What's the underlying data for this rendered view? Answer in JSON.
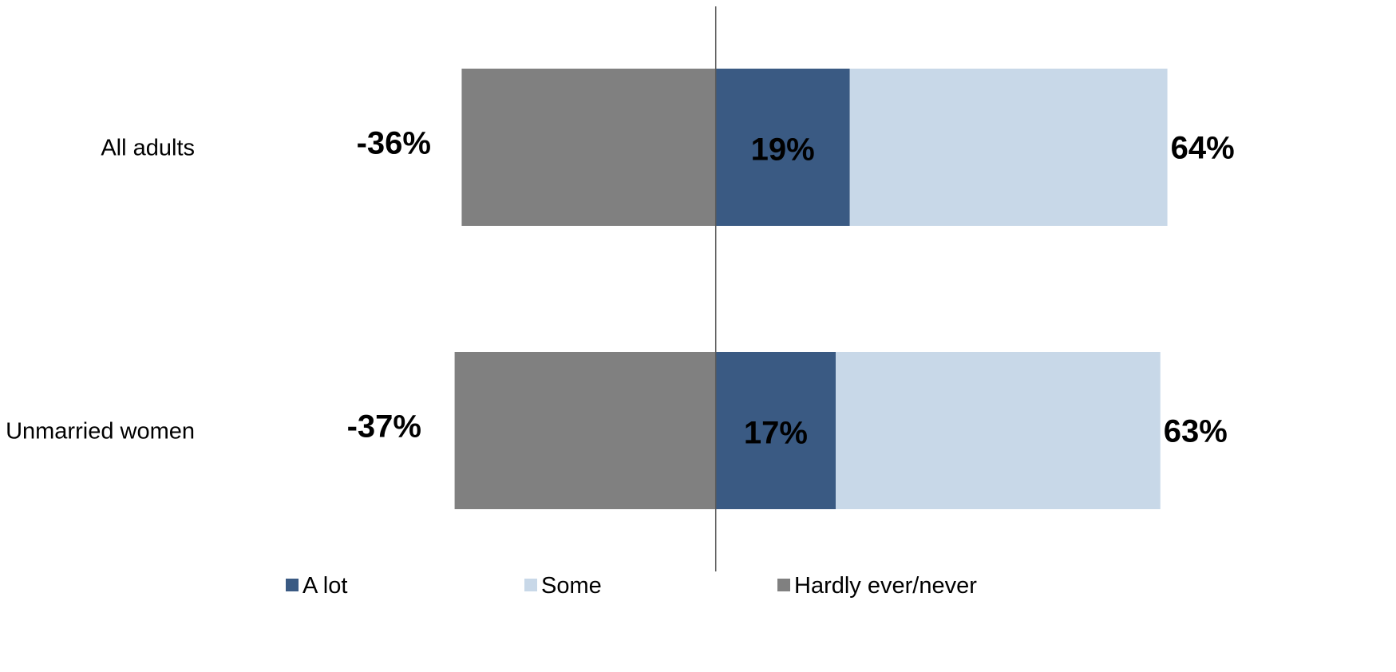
{
  "chart_data": {
    "type": "bar",
    "orientation": "horizontal",
    "stacked": "diverging",
    "categories": [
      "All adults",
      "Unmarried women"
    ],
    "series": [
      {
        "name": "A lot",
        "values": [
          19,
          17
        ],
        "color": "#3a5a83"
      },
      {
        "name": "Some",
        "values": [
          45,
          46
        ],
        "color": "#c8d8e8"
      },
      {
        "name": "Hardly ever/never",
        "values": [
          -36,
          -37
        ],
        "color": "#808080"
      }
    ],
    "labels": {
      "negative": [
        "-36%",
        "-37%"
      ],
      "a_lot": [
        "19%",
        "17%"
      ],
      "positive_total": [
        "64%",
        "63%"
      ]
    },
    "xlim": [
      -36.5,
      64.5
    ],
    "legend_position": "bottom",
    "grid": false
  }
}
